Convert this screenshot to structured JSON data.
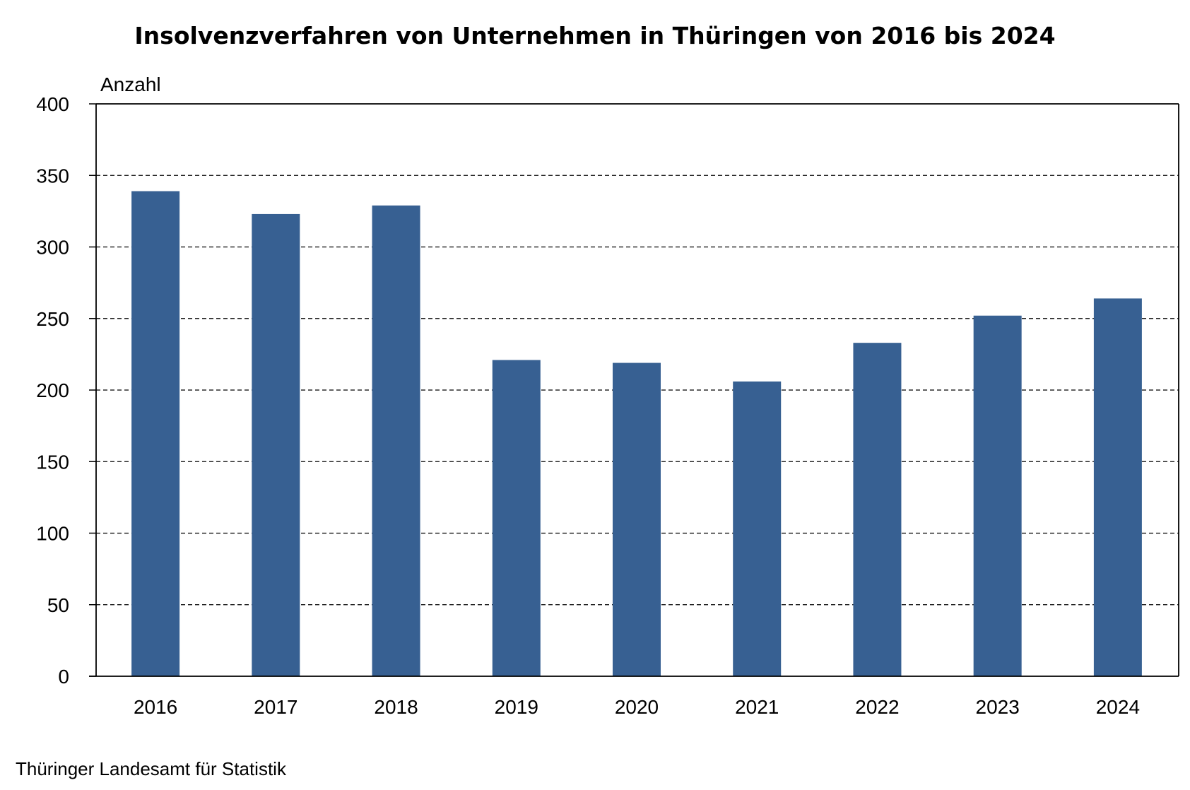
{
  "chart_data": {
    "type": "bar",
    "title": "Insolvenzverfahren von Unternehmen in Thüringen von 2016 bis 2024",
    "xlabel": "",
    "ylabel": "Anzahl",
    "categories": [
      "2016",
      "2017",
      "2018",
      "2019",
      "2020",
      "2021",
      "2022",
      "2023",
      "2024"
    ],
    "series": [
      {
        "values": [
          339,
          323,
          329,
          221,
          219,
          206,
          233,
          252,
          264
        ],
        "color": "#376092"
      }
    ],
    "ylim": [
      0,
      400
    ],
    "yticks": [
      0,
      50,
      100,
      150,
      200,
      250,
      300,
      350,
      400
    ],
    "grid": "horizontal-dashed",
    "legend": "none"
  },
  "source": "Thüringer Landesamt für Statistik"
}
